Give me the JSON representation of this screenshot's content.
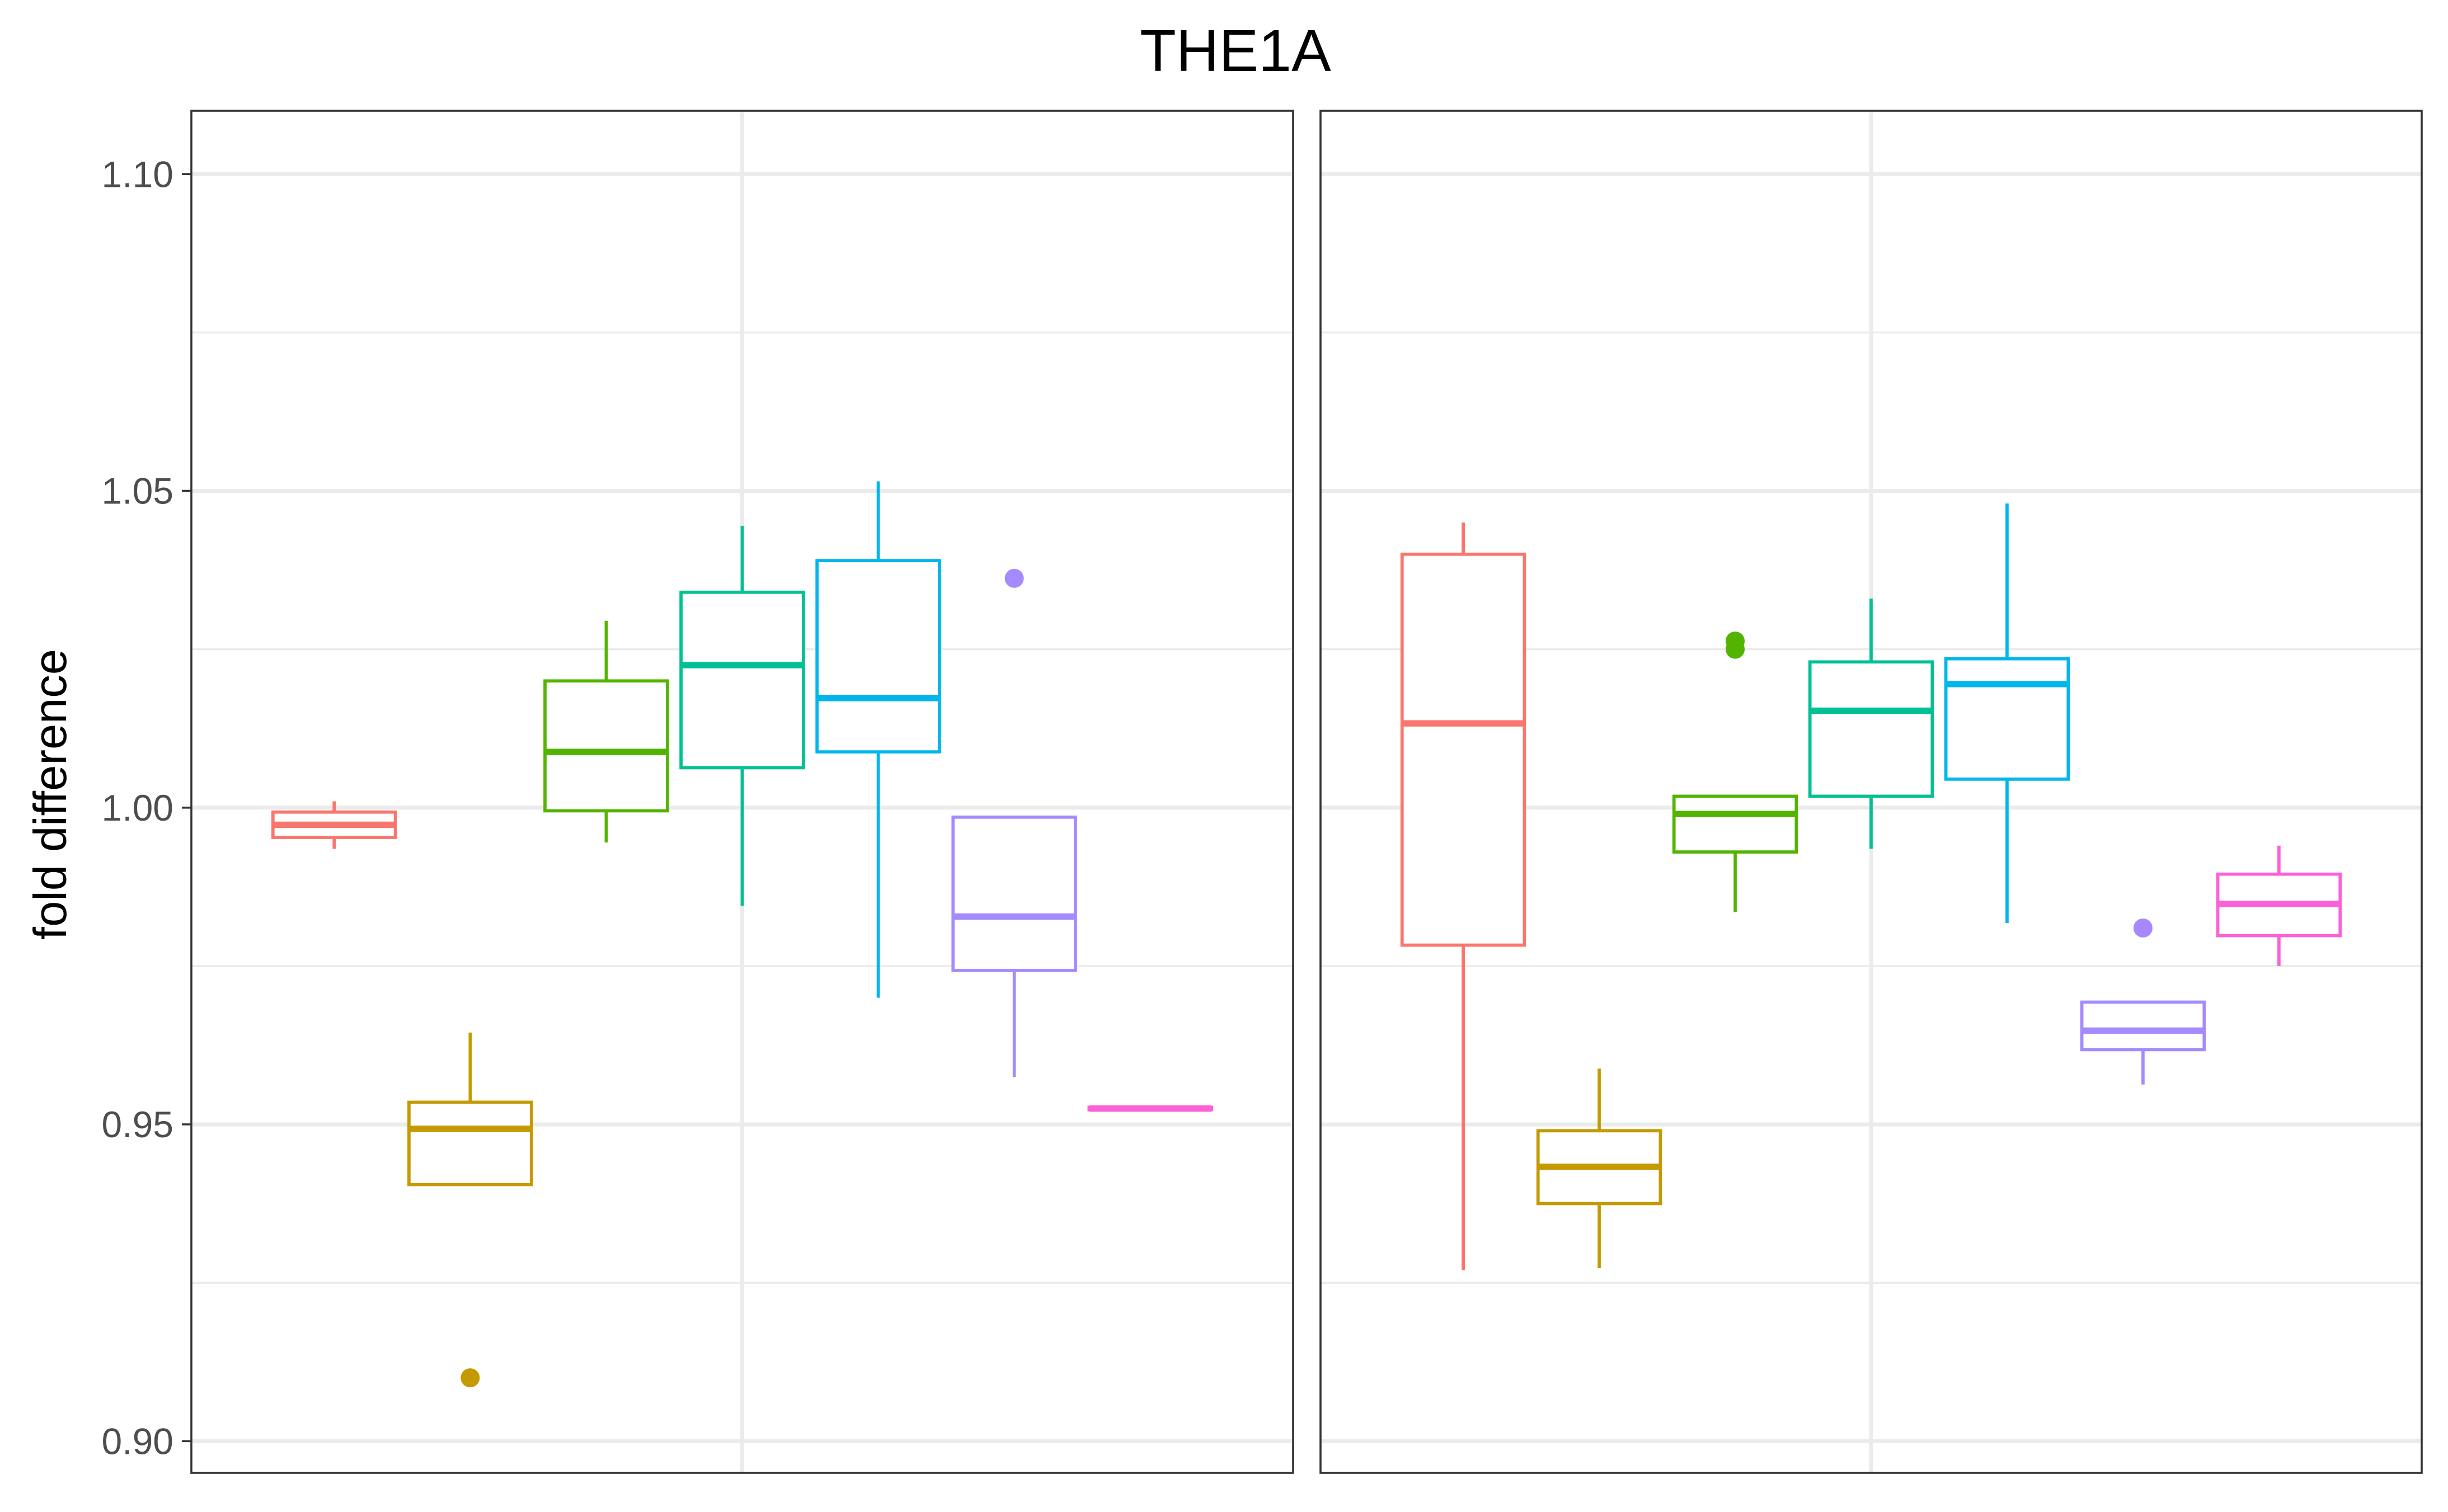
{
  "chart_data": {
    "type": "box",
    "title": "THE1A",
    "xlabel": "",
    "ylabel": "fold difference",
    "ylim": [
      0.895,
      1.11
    ],
    "yticks": [
      0.9,
      0.95,
      1.0,
      1.05,
      1.1
    ],
    "ytick_labels": [
      "0.90",
      "0.95",
      "1.00",
      "1.05",
      "1.10"
    ],
    "grid": true,
    "legend": "none",
    "group_colors": [
      "#F8766D",
      "#C49A00",
      "#53B400",
      "#00C094",
      "#00B6EB",
      "#A58AFF",
      "#FB61D7"
    ],
    "panels": [
      {
        "boxes": [
          {
            "whisker_low": 0.9935,
            "q1": 0.9953,
            "median": 0.9973,
            "q3": 0.9993,
            "whisker_high": 1.001,
            "outliers": []
          },
          {
            "whisker_low": 0.9405,
            "q1": 0.9405,
            "median": 0.9493,
            "q3": 0.9535,
            "whisker_high": 0.9645,
            "outliers": [
              0.91
            ]
          },
          {
            "whisker_low": 0.9945,
            "q1": 0.9995,
            "median": 1.0088,
            "q3": 1.02,
            "whisker_high": 1.0295,
            "outliers": []
          },
          {
            "whisker_low": 0.9845,
            "q1": 1.0063,
            "median": 1.0225,
            "q3": 1.034,
            "whisker_high": 1.0445,
            "outliers": []
          },
          {
            "whisker_low": 0.97,
            "q1": 1.0088,
            "median": 1.0173,
            "q3": 1.039,
            "whisker_high": 1.0515,
            "outliers": []
          },
          {
            "whisker_low": 0.9575,
            "q1": 0.9743,
            "median": 0.9828,
            "q3": 0.9985,
            "whisker_high": 0.9985,
            "outliers": [
              1.0362
            ]
          },
          {
            "whisker_low": 0.9523,
            "q1": 0.9523,
            "median": 0.9525,
            "q3": 0.9527,
            "whisker_high": 0.9527,
            "outliers": []
          }
        ]
      },
      {
        "boxes": [
          {
            "whisker_low": 0.927,
            "q1": 0.9783,
            "median": 1.0133,
            "q3": 1.04,
            "whisker_high": 1.045,
            "outliers": []
          },
          {
            "whisker_low": 0.9273,
            "q1": 0.9375,
            "median": 0.9433,
            "q3": 0.949,
            "whisker_high": 0.9588,
            "outliers": []
          },
          {
            "whisker_low": 0.9835,
            "q1": 0.993,
            "median": 0.999,
            "q3": 1.0018,
            "whisker_high": 1.0018,
            "outliers": [
              1.025,
              1.0263
            ]
          },
          {
            "whisker_low": 0.9935,
            "q1": 1.0018,
            "median": 1.0153,
            "q3": 1.023,
            "whisker_high": 1.033,
            "outliers": []
          },
          {
            "whisker_low": 0.9818,
            "q1": 1.0045,
            "median": 1.0195,
            "q3": 1.0235,
            "whisker_high": 1.048,
            "outliers": []
          },
          {
            "whisker_low": 0.9563,
            "q1": 0.9618,
            "median": 0.9648,
            "q3": 0.9693,
            "whisker_high": 0.9693,
            "outliers": [
              0.981
            ]
          },
          {
            "whisker_low": 0.975,
            "q1": 0.9798,
            "median": 0.9848,
            "q3": 0.9895,
            "whisker_high": 0.994,
            "outliers": []
          }
        ]
      }
    ]
  }
}
